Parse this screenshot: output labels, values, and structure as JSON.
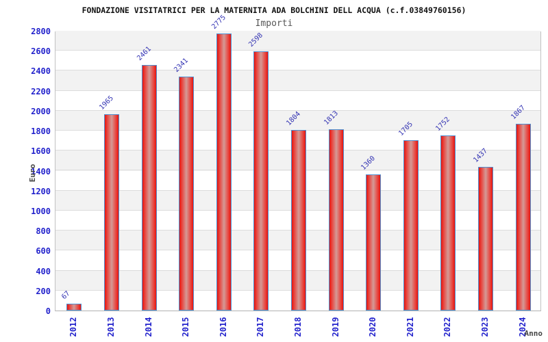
{
  "chart_data": {
    "type": "bar",
    "title": "FONDAZIONE VISITATRICI PER LA MATERNITA ADA BOLCHINI DELL ACQUA (c.f.03849760156)",
    "subtitle": "Importi",
    "xlabel": "Anno",
    "ylabel": "Euro",
    "categories": [
      "2012",
      "2013",
      "2014",
      "2015",
      "2016",
      "2017",
      "2018",
      "2019",
      "2020",
      "2021",
      "2022",
      "2023",
      "2024"
    ],
    "values": [
      67,
      1965,
      2461,
      2341,
      2775,
      2598,
      1804,
      1813,
      1360,
      1705,
      1752,
      1437,
      1867
    ],
    "ylim": [
      0,
      2800
    ],
    "ytick_step": 200,
    "grid": true,
    "legend_position": "none"
  },
  "style_colors": {
    "bar_fill_dark": "#e6150f",
    "bar_fill_mid": "#e8443e",
    "bar_fill_light": "#d49a96",
    "bar_border": "#4d8fd1",
    "tick_label_blue": "#2222cc",
    "value_label_blue": "#3333b3",
    "axis_title_gray": "#444444",
    "subtitle_gray": "#555555",
    "band_gray": "#f2f2f2",
    "grid_gray": "#dcdcdc",
    "title_black": "#111111"
  }
}
